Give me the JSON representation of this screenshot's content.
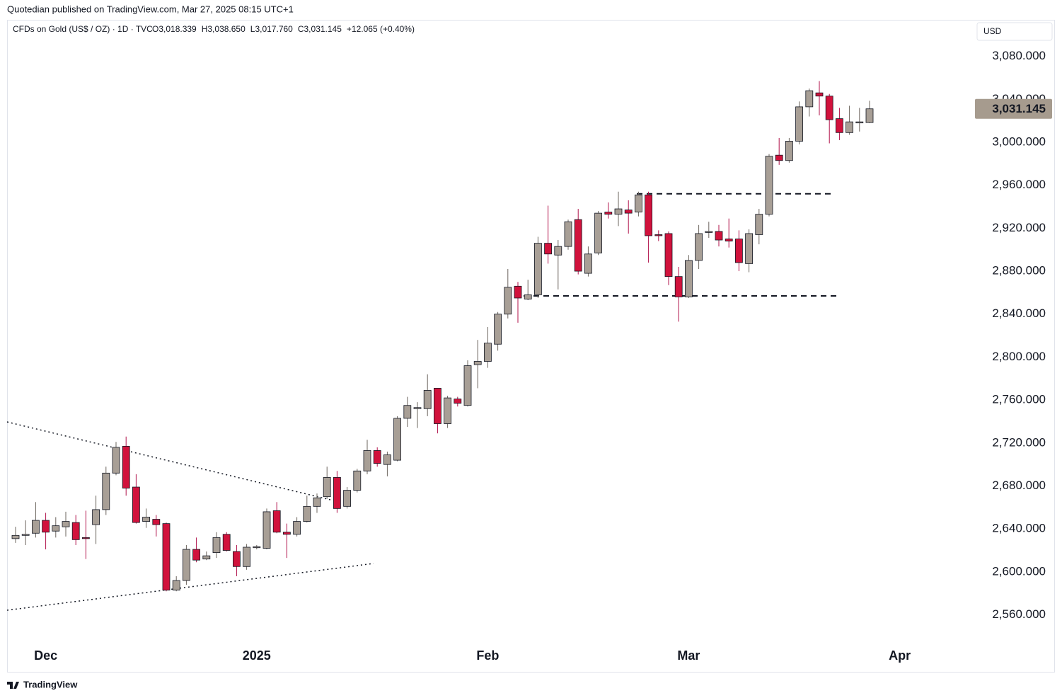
{
  "header": {
    "byline": "Quotedian published on TradingView.com, Mar 27, 2025 08:15 UTC+1",
    "brand": "TradingView"
  },
  "chart_data": {
    "type": "candlestick",
    "title": "CFDs on Gold (US$ / OZ) · 1D · TVC",
    "legend": [
      "O3,018.339",
      "H3,038.650",
      "L3,017.760",
      "C3,031.145",
      "+12.065 (+0.40%)"
    ],
    "currency": "USD",
    "categories": [
      null,
      null,
      null,
      "Dec",
      null,
      null,
      null,
      null,
      null,
      null,
      null,
      null,
      null,
      null,
      null,
      null,
      null,
      null,
      null,
      null,
      null,
      null,
      null,
      null,
      "2025",
      null,
      null,
      null,
      null,
      null,
      null,
      null,
      null,
      null,
      null,
      null,
      null,
      null,
      null,
      null,
      null,
      null,
      null,
      null,
      null,
      null,
      null,
      "Feb",
      null,
      null,
      null,
      null,
      null,
      null,
      null,
      null,
      null,
      null,
      null,
      null,
      null,
      null,
      null,
      null,
      null,
      null,
      null,
      "Mar",
      null,
      null,
      null,
      null,
      null,
      null,
      null,
      null,
      null,
      null,
      null,
      null,
      null,
      null,
      null,
      null,
      null,
      null,
      null,
      null,
      "Apr"
    ],
    "open": [
      2631,
      2634,
      2636,
      2648,
      2638,
      2642,
      2646,
      2632,
      2644,
      2658,
      2692,
      2717,
      2679,
      2647,
      2649,
      2645,
      2583,
      2592,
      2621,
      2612,
      2618,
      2635,
      2619,
      2605,
      2623,
      2622,
      2657,
      2637,
      2635,
      2647,
      2661,
      2670,
      2688,
      2661,
      2676,
      2694,
      2713,
      2700,
      2704,
      2743,
      2752,
      2752,
      2771,
      2738,
      2761,
      2755,
      2793,
      2796,
      2812,
      2840,
      2866,
      2854,
      2858,
      2906,
      2895,
      2903,
      2928,
      2878,
      2897,
      2935,
      2933,
      2937,
      2935,
      2951,
      2914,
      2915,
      2875,
      2856,
      2890,
      2916,
      2917,
      2910,
      2910,
      2887,
      2914,
      2933,
      2988,
      2983,
      3001,
      3033,
      3046,
      3043,
      3022,
      3009,
      3018,
      3018.339,
      null,
      null,
      null
    ],
    "high": [
      2642,
      2648,
      2665,
      2655,
      2651,
      2656,
      2653,
      2657,
      2671,
      2698,
      2721,
      2726,
      2691,
      2659,
      2653,
      2646,
      2596,
      2625,
      2632,
      2619,
      2637,
      2637,
      2625,
      2626,
      2625,
      2659,
      2665,
      2645,
      2651,
      2671,
      2673,
      2698,
      2694,
      2679,
      2696,
      2723,
      2716,
      2712,
      2745,
      2763,
      2758,
      2784,
      2771,
      2764,
      2763,
      2797,
      2816,
      2828,
      2842,
      2882,
      2870,
      2872,
      2912,
      2941,
      2909,
      2928,
      2938,
      2903,
      2936,
      2944,
      2954,
      2946,
      2954,
      2954,
      2918,
      2917,
      2884,
      2895,
      2923,
      2926,
      2923,
      2929,
      2918,
      2919,
      2938,
      2989,
      3004,
      3004,
      3038,
      3050,
      3057,
      3045,
      3032,
      3034,
      3032,
      3038.65,
      null,
      null,
      null
    ],
    "low": [
      2627,
      2625,
      2632,
      2621,
      2632,
      2633,
      2625,
      2612,
      2626,
      2653,
      2690,
      2671,
      2645,
      2641,
      2633,
      2582,
      2582,
      2588,
      2609,
      2611,
      2613,
      2619,
      2596,
      2602,
      2621,
      2621,
      2636,
      2613,
      2633,
      2646,
      2655,
      2668,
      2655,
      2659,
      2674,
      2691,
      2698,
      2689,
      2703,
      2735,
      2734,
      2745,
      2729,
      2734,
      2754,
      2754,
      2771,
      2790,
      2806,
      2836,
      2832,
      2853,
      2855,
      2887,
      2863,
      2900,
      2877,
      2875,
      2895,
      2929,
      2922,
      2915,
      2931,
      2888,
      2908,
      2867,
      2833,
      2855,
      2882,
      2911,
      2903,
      2902,
      2880,
      2879,
      2905,
      2931,
      2979,
      2981,
      2998,
      3024,
      3025,
      2999,
      3002,
      3007,
      3010,
      3017.76,
      null,
      null,
      null
    ],
    "close": [
      2634,
      2635,
      2648,
      2637,
      2643,
      2647,
      2630,
      2631,
      2658,
      2692,
      2716,
      2678,
      2646,
      2651,
      2644,
      2583,
      2592,
      2621,
      2611,
      2615,
      2632,
      2620,
      2605,
      2623,
      2623.5,
      2656,
      2637,
      2635,
      2647,
      2661,
      2669,
      2688,
      2659,
      2676,
      2694,
      2713,
      2701,
      2709,
      2743,
      2755,
      2753,
      2769,
      2738,
      2762,
      2757,
      2792,
      2796,
      2813,
      2840,
      2865,
      2855,
      2858,
      2906,
      2896,
      2903,
      2926,
      2880,
      2896,
      2934,
      2933,
      2938,
      2934,
      2951,
      2913,
      2913,
      2875,
      2856,
      2890,
      2915,
      2917,
      2909,
      2908,
      2888,
      2915,
      2933,
      2987,
      2983,
      3001,
      3033,
      3048,
      3043,
      3021,
      3009,
      3019,
      3019,
      3031.145,
      null,
      null,
      null
    ],
    "up_color": "#a89f96",
    "down_color": "#d1123c",
    "ylim": [
      2536,
      3114
    ],
    "yticks": [
      {
        "value": 2560,
        "label": "2,560.000"
      },
      {
        "value": 2600,
        "label": "2,600.000"
      },
      {
        "value": 2640,
        "label": "2,640.000"
      },
      {
        "value": 2680,
        "label": "2,680.000"
      },
      {
        "value": 2720,
        "label": "2,720.000"
      },
      {
        "value": 2760,
        "label": "2,760.000"
      },
      {
        "value": 2800,
        "label": "2,800.000"
      },
      {
        "value": 2840,
        "label": "2,840.000"
      },
      {
        "value": 2880,
        "label": "2,880.000"
      },
      {
        "value": 2920,
        "label": "2,920.000"
      },
      {
        "value": 2960,
        "label": "2,960.000"
      },
      {
        "value": 3000,
        "label": "3,000.000"
      },
      {
        "value": 3040,
        "label": "3,040.000"
      },
      {
        "value": 3080,
        "label": "3,080.000"
      }
    ],
    "last_price": {
      "value": 3031.145,
      "label": "3,031.145"
    },
    "levels": [
      2952,
      2857
    ]
  }
}
